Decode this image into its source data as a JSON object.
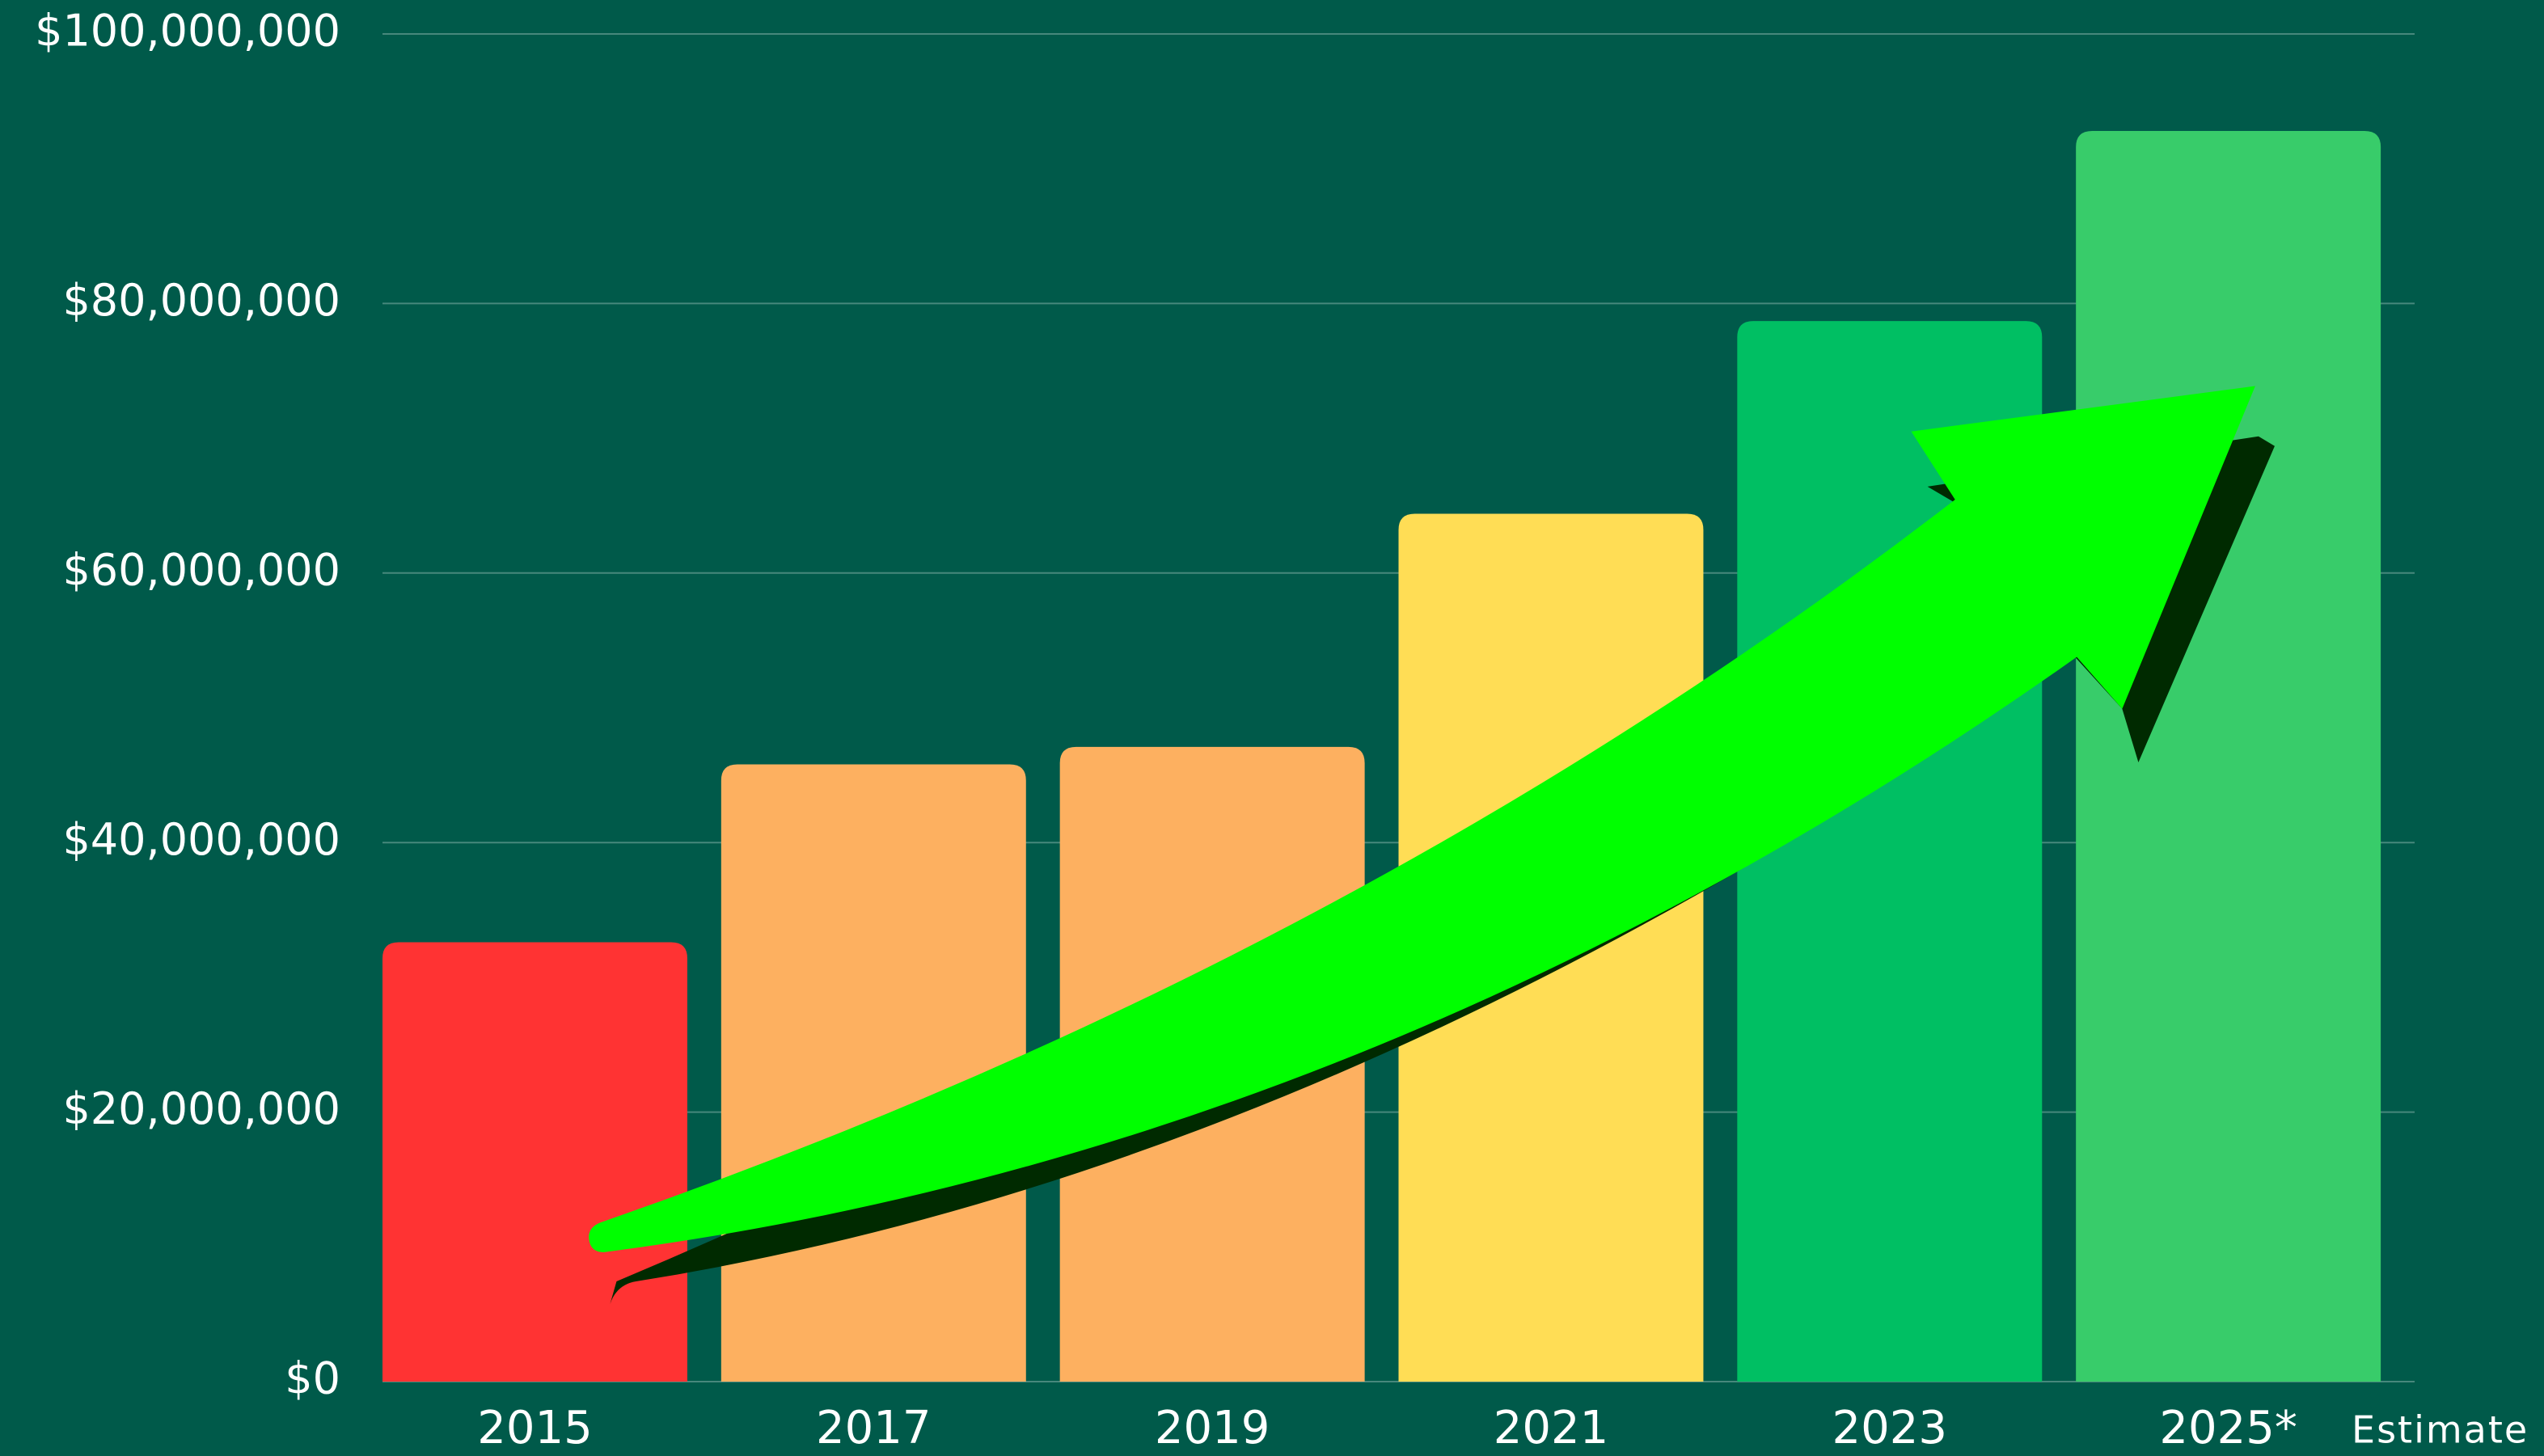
{
  "chart_data": {
    "type": "bar",
    "categories": [
      "2015",
      "2017",
      "2019",
      "2021",
      "2023",
      "2025*"
    ],
    "values": [
      32600000,
      45800000,
      47100000,
      64400000,
      78700000,
      92800000
    ],
    "colors": [
      "#ff3333",
      "#fdb060",
      "#fdb060",
      "#ffdd55",
      "#00bf63",
      "#38cc6a"
    ],
    "annotation": "Estimate",
    "ylim": [
      0,
      100000000
    ],
    "yticks": [
      {
        "value": 0,
        "label": "$0"
      },
      {
        "value": 20000000,
        "label": "$20,000,000"
      },
      {
        "value": 40000000,
        "label": "$40,000,000"
      },
      {
        "value": 60000000,
        "label": "$60,000,000"
      },
      {
        "value": 80000000,
        "label": "$80,000,000"
      },
      {
        "value": 100000000,
        "label": "$100,000,000"
      }
    ],
    "grid": true
  }
}
